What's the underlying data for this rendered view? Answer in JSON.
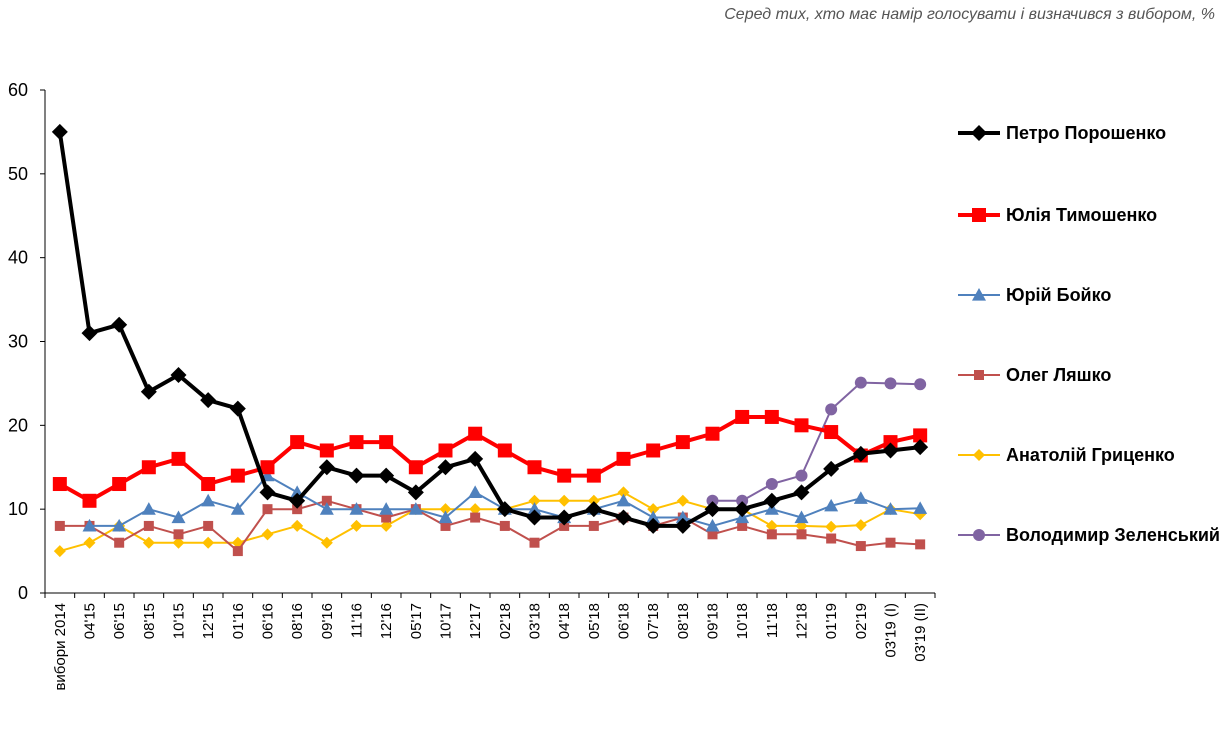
{
  "subtitle": "Серед тих, хто має намір голосувати і визначився з вибором, %",
  "chart_data": {
    "type": "line",
    "title": "",
    "subtitle": "Серед тих, хто має намір голосувати і визначився з вибором, %",
    "xlabel": "",
    "ylabel": "",
    "ylim": [
      0,
      60
    ],
    "yticks": [
      0,
      10,
      20,
      30,
      40,
      50,
      60
    ],
    "grid": false,
    "legend_position": "right",
    "categories": [
      "вибори 2014",
      "04'15",
      "06'15",
      "08'15",
      "10'15",
      "12'15",
      "01'16",
      "06'16",
      "08'16",
      "09'16",
      "11'16",
      "12'16",
      "05'17",
      "10'17",
      "12'17",
      "02'18",
      "03'18",
      "04'18",
      "05'18",
      "06'18",
      "07'18",
      "08'18",
      "09'18",
      "10'18",
      "11'18",
      "12'18",
      "01'19",
      "02'19",
      "03'19 (I)",
      "03'19 (II)"
    ],
    "series": [
      {
        "name": "Петро Порошенко",
        "color": "#000000",
        "marker": "diamond",
        "values": [
          55,
          31,
          32,
          24,
          26,
          23,
          22,
          12,
          11,
          15,
          14,
          14,
          12,
          15,
          16,
          10,
          9,
          9,
          10,
          9,
          8,
          8,
          10,
          10,
          11,
          12,
          14.8,
          16.6,
          17,
          17.4
        ]
      },
      {
        "name": "Юлія Тимошенко",
        "color": "#ff0000",
        "marker": "square",
        "values": [
          13,
          11,
          13,
          15,
          16,
          13,
          14,
          15,
          18,
          17,
          18,
          18,
          15,
          17,
          19,
          17,
          15,
          14,
          14,
          16,
          17,
          18,
          19,
          21,
          21,
          20,
          19.2,
          16.4,
          18,
          18.8
        ]
      },
      {
        "name": "Юрій Бойко",
        "color": "#4f81bd",
        "marker": "triangle",
        "values": [
          null,
          8,
          8,
          10,
          9,
          11,
          10,
          14,
          12,
          10,
          10,
          10,
          10,
          9,
          12,
          10,
          10,
          9,
          10,
          11,
          9,
          9,
          8,
          9,
          10,
          9,
          10.4,
          11.3,
          10,
          10.1
        ]
      },
      {
        "name": "Олег Ляшко",
        "color": "#c0504d",
        "marker": "square-small",
        "values": [
          8,
          8,
          6,
          8,
          7,
          8,
          5,
          10,
          10,
          11,
          10,
          9,
          10,
          8,
          9,
          8,
          6,
          8,
          8,
          9,
          8,
          9,
          7,
          8,
          7,
          7,
          6.5,
          5.6,
          6,
          5.8
        ]
      },
      {
        "name": "Анатолій Гриценко",
        "color": "#ffc000",
        "marker": "diamond-small",
        "values": [
          5,
          6,
          8,
          6,
          6,
          6,
          6,
          7,
          8,
          6,
          8,
          8,
          10,
          10,
          10,
          10,
          11,
          11,
          11,
          12,
          10,
          11,
          10,
          10,
          8,
          8,
          7.9,
          8.1,
          10,
          9.4
        ]
      },
      {
        "name": "Володимир Зеленський",
        "color": "#8064a2",
        "marker": "circle",
        "values": [
          null,
          null,
          null,
          null,
          null,
          null,
          null,
          null,
          null,
          null,
          null,
          null,
          null,
          null,
          null,
          null,
          null,
          null,
          null,
          null,
          null,
          null,
          11,
          11,
          13,
          14,
          21.9,
          25.1,
          25,
          24.9
        ]
      }
    ]
  }
}
